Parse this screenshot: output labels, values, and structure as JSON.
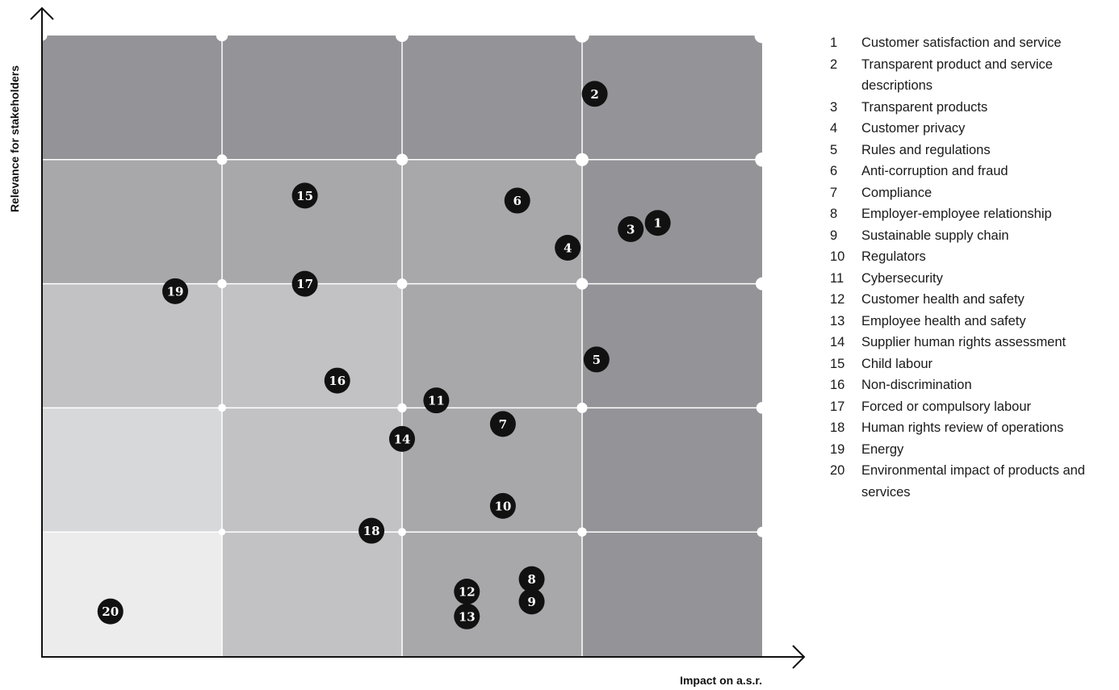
{
  "chart_data": {
    "type": "scatter",
    "xlabel": "Impact on a.s.r.",
    "ylabel": "Relevance for stakeholders",
    "xlim": [
      0,
      4
    ],
    "ylim": [
      0,
      5
    ],
    "grid": {
      "columns": 4,
      "rows": 5
    },
    "cell_colors": [
      [
        "#949398",
        "#949398",
        "#949398",
        "#949398"
      ],
      [
        "#a8a8ab",
        "#a8a8ab",
        "#a8a8ab",
        "#949398"
      ],
      [
        "#c2c2c5",
        "#c2c2c5",
        "#a8a8ab",
        "#949398"
      ],
      [
        "#d6d8d9",
        "#c2c2c5",
        "#a8a8ab",
        "#949398"
      ],
      [
        "#ececed",
        "#c2c2c5",
        "#a8a8ab",
        "#949398"
      ]
    ],
    "points": [
      {
        "id": "1",
        "x": 3.42,
        "y": 3.49
      },
      {
        "id": "2",
        "x": 3.07,
        "y": 4.53
      },
      {
        "id": "3",
        "x": 3.27,
        "y": 3.44
      },
      {
        "id": "4",
        "x": 2.92,
        "y": 3.29
      },
      {
        "id": "5",
        "x": 3.08,
        "y": 2.39
      },
      {
        "id": "6",
        "x": 2.64,
        "y": 3.67
      },
      {
        "id": "7",
        "x": 2.56,
        "y": 1.87
      },
      {
        "id": "8",
        "x": 2.72,
        "y": 0.62
      },
      {
        "id": "9",
        "x": 2.72,
        "y": 0.44
      },
      {
        "id": "10",
        "x": 2.56,
        "y": 1.21
      },
      {
        "id": "11",
        "x": 2.19,
        "y": 2.06
      },
      {
        "id": "12",
        "x": 2.36,
        "y": 0.52
      },
      {
        "id": "13",
        "x": 2.36,
        "y": 0.32
      },
      {
        "id": "14",
        "x": 2.0,
        "y": 1.75
      },
      {
        "id": "15",
        "x": 1.46,
        "y": 3.71
      },
      {
        "id": "16",
        "x": 1.64,
        "y": 2.22
      },
      {
        "id": "17",
        "x": 1.46,
        "y": 3.0
      },
      {
        "id": "18",
        "x": 1.83,
        "y": 1.01
      },
      {
        "id": "19",
        "x": 0.74,
        "y": 2.94
      },
      {
        "id": "20",
        "x": 0.38,
        "y": 0.36
      }
    ],
    "legend": [
      {
        "num": "1",
        "label": "Customer satisfaction and service"
      },
      {
        "num": "2",
        "label": "Transparent product and service descriptions"
      },
      {
        "num": "3",
        "label": "Transparent products"
      },
      {
        "num": "4",
        "label": "Customer privacy"
      },
      {
        "num": "5",
        "label": "Rules and regulations"
      },
      {
        "num": "6",
        "label": "Anti-corruption and fraud"
      },
      {
        "num": "7",
        "label": "Compliance"
      },
      {
        "num": "8",
        "label": "Employer-employee relationship"
      },
      {
        "num": "9",
        "label": "Sustainable supply chain"
      },
      {
        "num": "10",
        "label": "Regulators"
      },
      {
        "num": "11",
        "label": "Cybersecurity"
      },
      {
        "num": "12",
        "label": "Customer health and safety"
      },
      {
        "num": "13",
        "label": "Employee health and safety"
      },
      {
        "num": "14",
        "label": "Supplier human rights assessment"
      },
      {
        "num": "15",
        "label": "Child labour"
      },
      {
        "num": "16",
        "label": "Non-discrimination"
      },
      {
        "num": "17",
        "label": "Forced or compulsory labour"
      },
      {
        "num": "18",
        "label": "Human rights review of operations"
      },
      {
        "num": "19",
        "label": "Energy"
      },
      {
        "num": "20",
        "label": "Environmental impact of products and services"
      }
    ]
  }
}
